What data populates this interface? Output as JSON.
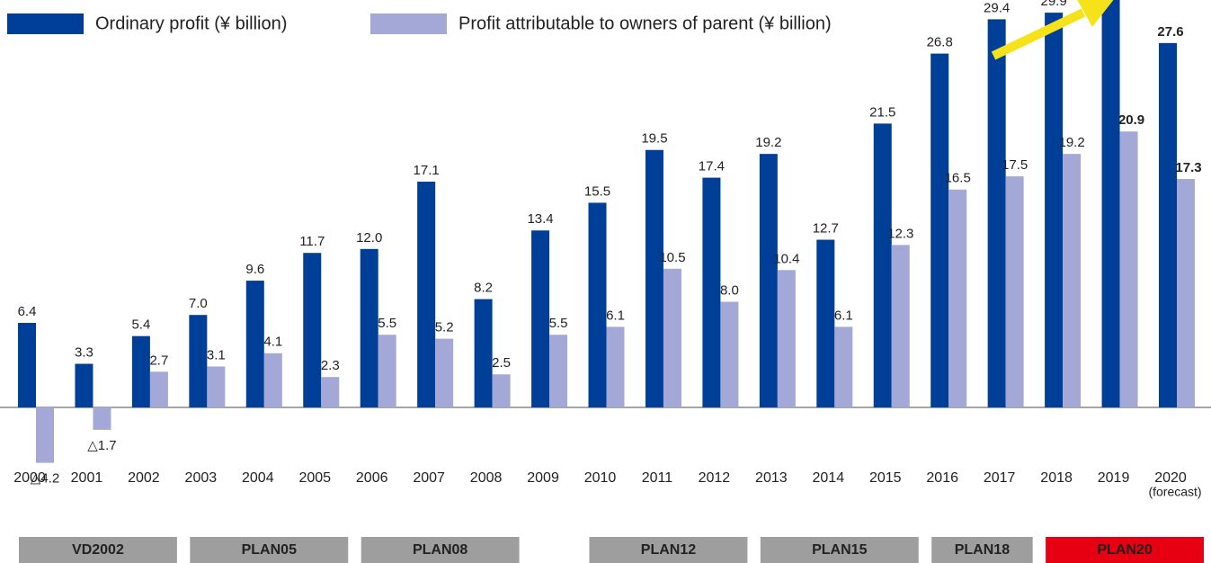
{
  "chart_data": {
    "type": "bar",
    "categories": [
      "2000",
      "2001",
      "2002",
      "2003",
      "2004",
      "2005",
      "2006",
      "2007",
      "2008",
      "2009",
      "2010",
      "2011",
      "2012",
      "2013",
      "2014",
      "2015",
      "2016",
      "2017",
      "2018",
      "2019",
      "2020"
    ],
    "category_note": {
      "index": 20,
      "text": "(forecast)"
    },
    "series": [
      {
        "name": "Ordinary profit (¥ billion)",
        "color": "#003f98",
        "values": [
          6.4,
          3.3,
          5.4,
          7.0,
          9.6,
          11.7,
          12.0,
          17.1,
          8.2,
          13.4,
          15.5,
          19.5,
          17.4,
          19.2,
          12.7,
          21.5,
          26.8,
          29.4,
          29.9,
          31.5,
          27.6
        ],
        "value_labels": [
          "6.4",
          "3.3",
          "5.4",
          "7.0",
          "9.6",
          "11.7",
          "12.0",
          "17.1",
          "8.2",
          "13.4",
          "15.5",
          "19.5",
          "17.4",
          "19.2",
          "12.7",
          "21.5",
          "26.8",
          "29.4",
          "29.9",
          null,
          "27.6"
        ],
        "highlight_labels": [
          20
        ]
      },
      {
        "name": "Profit attributable to owners of parent (¥ billion)",
        "color": "#a4a8d6",
        "values": [
          -4.2,
          -1.7,
          2.7,
          3.1,
          4.1,
          2.3,
          5.5,
          5.2,
          2.5,
          5.5,
          6.1,
          10.5,
          8.0,
          10.4,
          6.1,
          12.3,
          16.5,
          17.5,
          19.2,
          20.9,
          17.3
        ],
        "value_labels": [
          "△4.2",
          "△1.7",
          "2.7",
          "3.1",
          "4.1",
          "2.3",
          "5.5",
          "5.2",
          "2.5",
          "5.5",
          "6.1",
          "10.5",
          "8.0",
          "10.4",
          "6.1",
          "12.3",
          "16.5",
          "17.5",
          "19.2",
          "20.9",
          "17.3"
        ],
        "highlight_labels": [
          19,
          20
        ]
      }
    ],
    "highlight_color": "#e60012",
    "ylim": [
      -11.79,
      30.86
    ],
    "periods": [
      {
        "label": "VD2002",
        "start": "2000",
        "end": "2002",
        "color": "#9e9e9e"
      },
      {
        "label": "PLAN05",
        "start": "2003",
        "end": "2005",
        "color": "#9e9e9e"
      },
      {
        "label": "PLAN08",
        "start": "2006",
        "end": "2008",
        "color": "#9e9e9e"
      },
      {
        "label": "PLAN12",
        "start": "2010",
        "end": "2012",
        "color": "#9e9e9e"
      },
      {
        "label": "PLAN15",
        "start": "2013",
        "end": "2015",
        "color": "#9e9e9e"
      },
      {
        "label": "PLAN18",
        "start": "2016",
        "end": "2017",
        "color": "#9e9e9e"
      },
      {
        "label": "PLAN20",
        "start": "2018",
        "end": "2020",
        "color": "#e60012"
      }
    ]
  }
}
